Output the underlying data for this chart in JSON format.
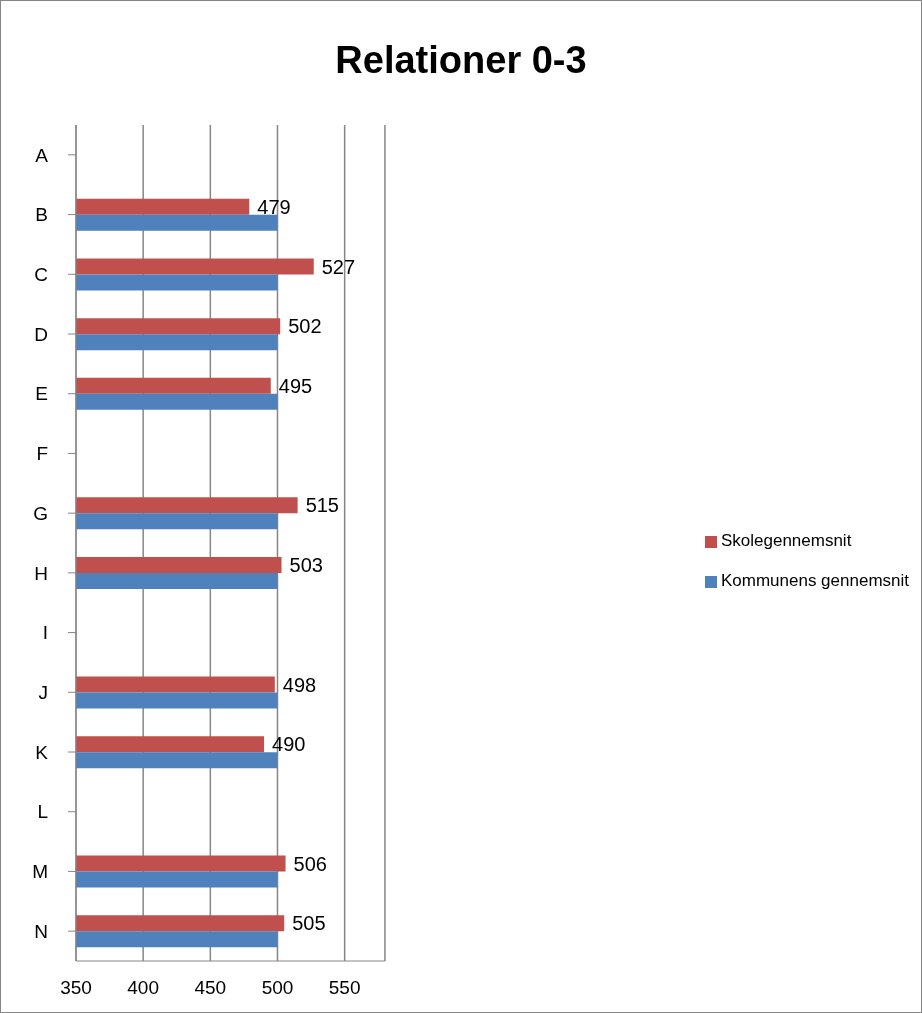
{
  "chart_data": {
    "type": "bar",
    "orientation": "horizontal",
    "title": "Relationer 0-3",
    "categories": [
      "A",
      "B",
      "C",
      "D",
      "E",
      "F",
      "G",
      "H",
      "I",
      "J",
      "K",
      "L",
      "M",
      "N"
    ],
    "series": [
      {
        "name": "Skolegennemsnit",
        "color": "#c0504d",
        "values": [
          null,
          479,
          527,
          502,
          495,
          null,
          515,
          503,
          null,
          498,
          490,
          null,
          506,
          505
        ],
        "value_labels": [
          null,
          "479",
          "527",
          "502",
          "495",
          null,
          "515",
          "503",
          null,
          "498",
          "490",
          null,
          "506",
          "505"
        ]
      },
      {
        "name": "Kommunens gennemsnit",
        "color": "#4f81bd",
        "values": [
          null,
          500,
          500,
          500,
          500,
          null,
          500,
          500,
          null,
          500,
          500,
          null,
          500,
          500
        ]
      }
    ],
    "xlim": [
      350,
      580
    ],
    "xticks": [
      350,
      400,
      450,
      500,
      550
    ],
    "grid": "x",
    "legend": "right"
  }
}
